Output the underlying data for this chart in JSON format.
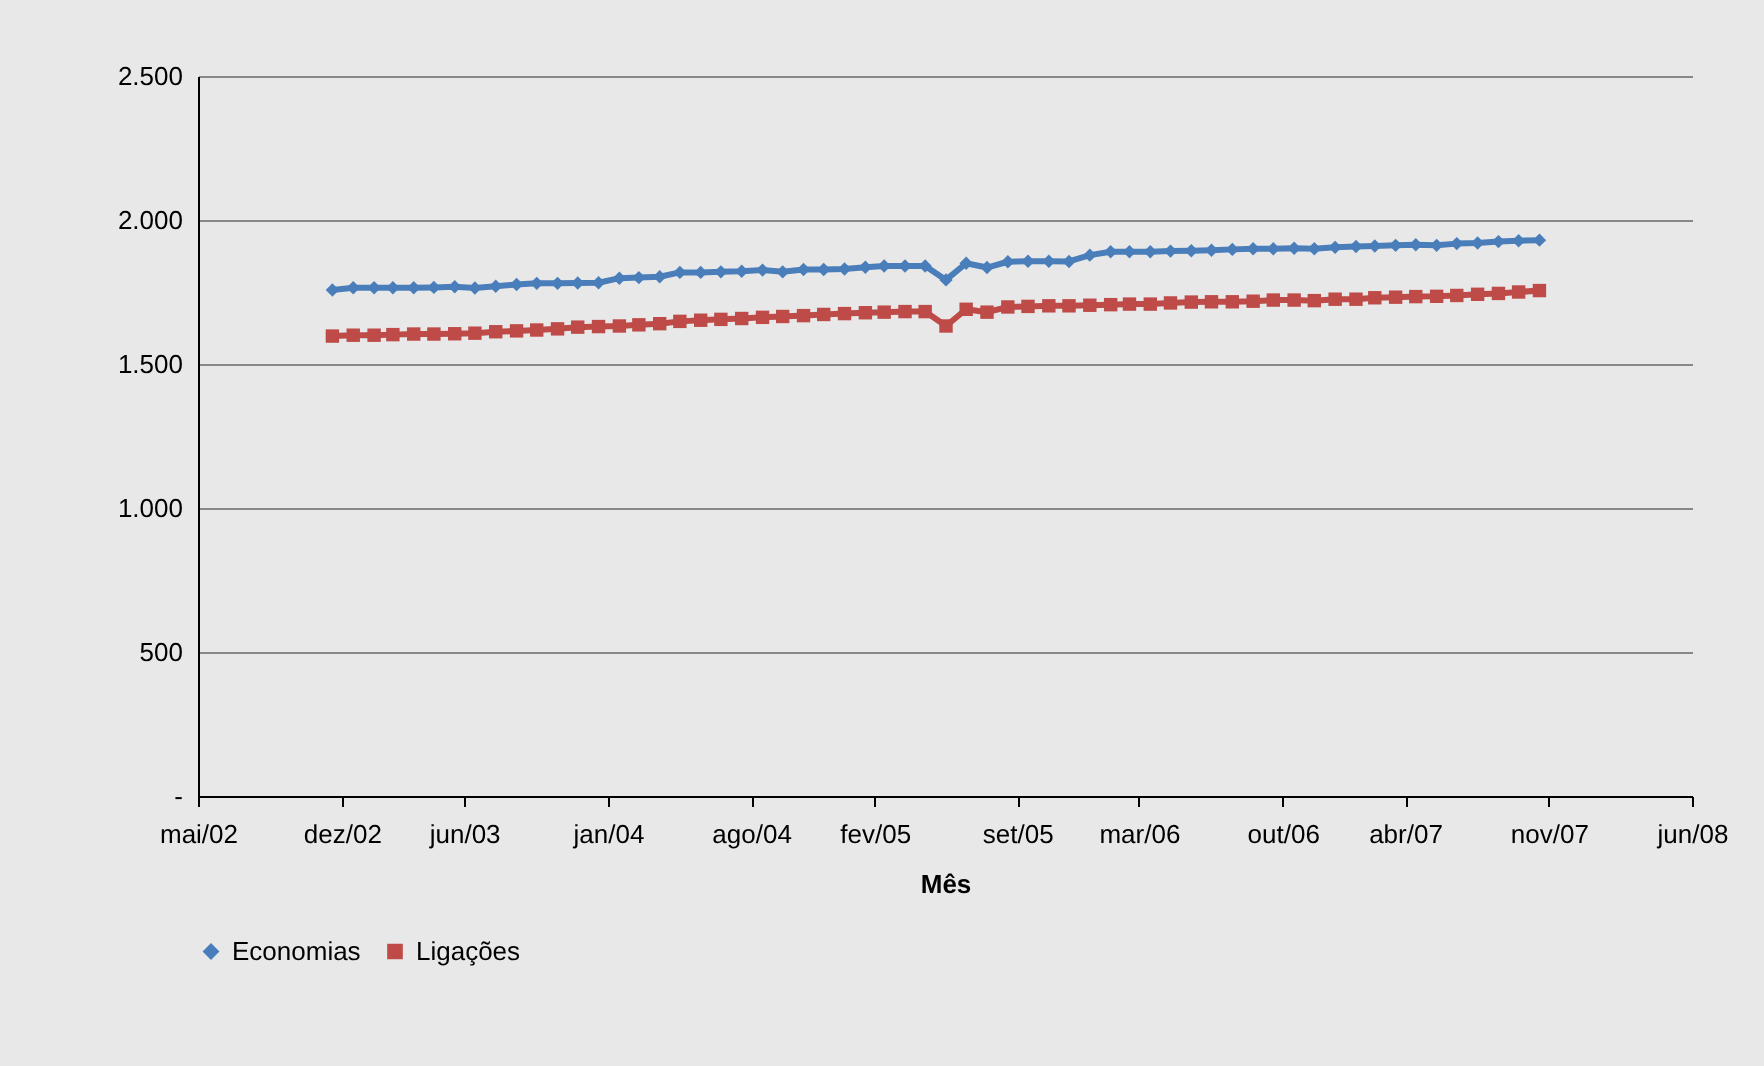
{
  "chart_data": {
    "type": "line",
    "xlabel": "Mês",
    "x": [
      "2002-12",
      "2003-01",
      "2003-02",
      "2003-03",
      "2003-04",
      "2003-05",
      "2003-06",
      "2003-07",
      "2003-08",
      "2003-09",
      "2003-10",
      "2003-11",
      "2003-12",
      "2004-01",
      "2004-02",
      "2004-03",
      "2004-04",
      "2004-05",
      "2004-06",
      "2004-07",
      "2004-08",
      "2004-09",
      "2004-10",
      "2004-11",
      "2004-12",
      "2005-01",
      "2005-02",
      "2005-03",
      "2005-04",
      "2005-05",
      "2005-06",
      "2005-07",
      "2005-08",
      "2005-09",
      "2005-10",
      "2005-11",
      "2005-12",
      "2006-01",
      "2006-02",
      "2006-03",
      "2006-04",
      "2006-05",
      "2006-06",
      "2006-07",
      "2006-08",
      "2006-09",
      "2006-10",
      "2006-11",
      "2006-12",
      "2007-01",
      "2007-02",
      "2007-03",
      "2007-04",
      "2007-05",
      "2007-06",
      "2007-07",
      "2007-08",
      "2007-09",
      "2007-10",
      "2007-11"
    ],
    "series": [
      {
        "name": "Economias",
        "color": "#4a7ebb",
        "marker": "diamond",
        "values": [
          1757,
          1765,
          1765,
          1765,
          1765,
          1766,
          1768,
          1764,
          1770,
          1776,
          1780,
          1780,
          1781,
          1782,
          1798,
          1800,
          1803,
          1818,
          1818,
          1820,
          1822,
          1826,
          1820,
          1828,
          1828,
          1830,
          1836,
          1840,
          1840,
          1840,
          1792,
          1850,
          1835,
          1855,
          1857,
          1857,
          1856,
          1878,
          1890,
          1890,
          1890,
          1892,
          1893,
          1895,
          1898,
          1900,
          1900,
          1902,
          1900,
          1905,
          1908,
          1910,
          1912,
          1914,
          1912,
          1918,
          1920,
          1925,
          1928,
          1930
        ]
      },
      {
        "name": "Ligações",
        "color": "#be4b48",
        "marker": "square",
        "values": [
          1597,
          1600,
          1600,
          1602,
          1604,
          1604,
          1605,
          1607,
          1612,
          1615,
          1618,
          1622,
          1628,
          1630,
          1632,
          1636,
          1640,
          1648,
          1652,
          1655,
          1658,
          1662,
          1665,
          1668,
          1672,
          1675,
          1678,
          1680,
          1682,
          1682,
          1632,
          1690,
          1680,
          1698,
          1700,
          1702,
          1702,
          1704,
          1706,
          1708,
          1708,
          1712,
          1715,
          1716,
          1716,
          1718,
          1722,
          1722,
          1720,
          1725,
          1725,
          1730,
          1732,
          1734,
          1735,
          1738,
          1742,
          1745,
          1750,
          1755
        ]
      }
    ],
    "xlim": [
      "2002-05-15",
      "2008-06-15"
    ],
    "xticks": [
      {
        "value": "2002-05-15",
        "label": "mai/02"
      },
      {
        "value": "2002-12-15",
        "label": "dez/02"
      },
      {
        "value": "2003-06-15",
        "label": "jun/03"
      },
      {
        "value": "2004-01-15",
        "label": "jan/04"
      },
      {
        "value": "2004-08-15",
        "label": "ago/04"
      },
      {
        "value": "2005-02-15",
        "label": "fev/05"
      },
      {
        "value": "2005-09-15",
        "label": "set/05"
      },
      {
        "value": "2006-03-15",
        "label": "mar/06"
      },
      {
        "value": "2006-10-15",
        "label": "out/06"
      },
      {
        "value": "2007-04-15",
        "label": "abr/07"
      },
      {
        "value": "2007-11-15",
        "label": "nov/07"
      },
      {
        "value": "2008-06-15",
        "label": "jun/08"
      }
    ],
    "ylim": [
      0,
      2500
    ],
    "yticks": [
      {
        "value": 0,
        "label": "-"
      },
      {
        "value": 500,
        "label": "500"
      },
      {
        "value": 1000,
        "label": "1.000"
      },
      {
        "value": 1500,
        "label": "1.500"
      },
      {
        "value": 2000,
        "label": "2.000"
      },
      {
        "value": 2500,
        "label": "2.500"
      }
    ],
    "grid": "y",
    "legend": "bottom"
  }
}
